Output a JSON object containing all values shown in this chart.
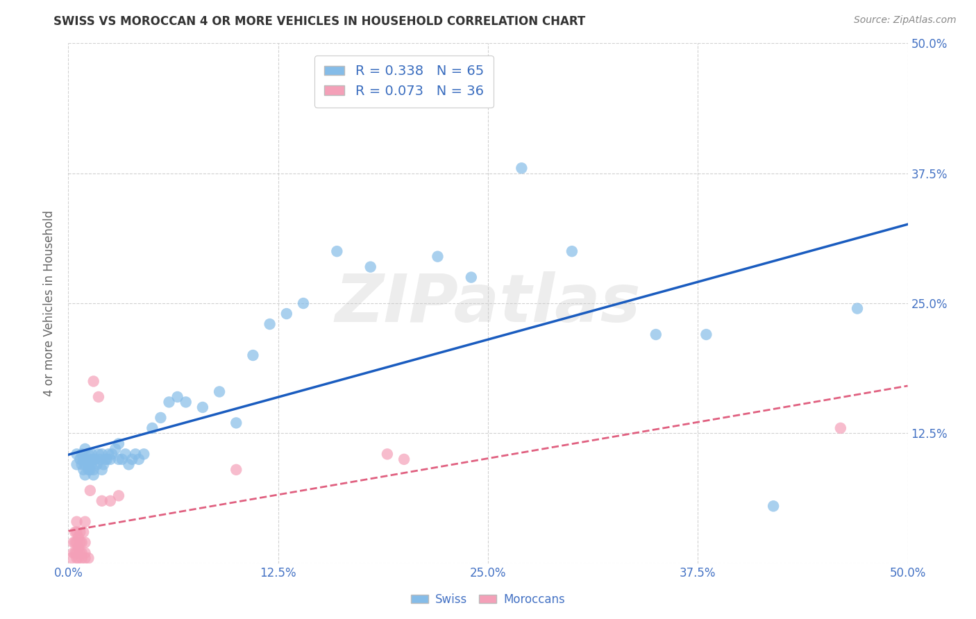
{
  "title": "SWISS VS MOROCCAN 4 OR MORE VEHICLES IN HOUSEHOLD CORRELATION CHART",
  "source": "Source: ZipAtlas.com",
  "ylabel": "4 or more Vehicles in Household",
  "xlim": [
    0.0,
    0.5
  ],
  "ylim": [
    0.0,
    0.5
  ],
  "xtick_vals": [
    0.0,
    0.125,
    0.25,
    0.375,
    0.5
  ],
  "xtick_labels": [
    "0.0%",
    "12.5%",
    "25.0%",
    "37.5%",
    "50.0%"
  ],
  "right_ytick_vals": [
    0.5,
    0.375,
    0.25,
    0.125
  ],
  "right_ytick_labels": [
    "50.0%",
    "37.5%",
    "25.0%",
    "12.5%"
  ],
  "swiss_R": 0.338,
  "swiss_N": 65,
  "moroccan_R": 0.073,
  "moroccan_N": 36,
  "swiss_color": "#85bce8",
  "moroccan_color": "#f4a0b8",
  "swiss_line_color": "#1a5cbf",
  "moroccan_line_color": "#e06080",
  "background_color": "#ffffff",
  "grid_color": "#cccccc",
  "legend_text_color": "#3a6dbf",
  "watermark": "ZIPatlas",
  "swiss_x": [
    0.005,
    0.005,
    0.007,
    0.008,
    0.008,
    0.009,
    0.009,
    0.01,
    0.01,
    0.01,
    0.01,
    0.012,
    0.012,
    0.012,
    0.013,
    0.013,
    0.014,
    0.014,
    0.015,
    0.015,
    0.015,
    0.016,
    0.017,
    0.018,
    0.019,
    0.02,
    0.02,
    0.021,
    0.022,
    0.023,
    0.024,
    0.025,
    0.026,
    0.028,
    0.03,
    0.03,
    0.032,
    0.034,
    0.036,
    0.038,
    0.04,
    0.042,
    0.045,
    0.05,
    0.055,
    0.06,
    0.065,
    0.07,
    0.08,
    0.09,
    0.1,
    0.11,
    0.12,
    0.13,
    0.14,
    0.16,
    0.18,
    0.22,
    0.24,
    0.27,
    0.3,
    0.35,
    0.38,
    0.42,
    0.47
  ],
  "swiss_y": [
    0.095,
    0.105,
    0.1,
    0.095,
    0.105,
    0.09,
    0.1,
    0.085,
    0.095,
    0.1,
    0.11,
    0.09,
    0.095,
    0.105,
    0.09,
    0.1,
    0.095,
    0.105,
    0.085,
    0.09,
    0.1,
    0.1,
    0.095,
    0.105,
    0.1,
    0.09,
    0.105,
    0.095,
    0.1,
    0.1,
    0.105,
    0.1,
    0.105,
    0.11,
    0.1,
    0.115,
    0.1,
    0.105,
    0.095,
    0.1,
    0.105,
    0.1,
    0.105,
    0.13,
    0.14,
    0.155,
    0.16,
    0.155,
    0.15,
    0.165,
    0.135,
    0.2,
    0.23,
    0.24,
    0.25,
    0.3,
    0.285,
    0.295,
    0.275,
    0.38,
    0.3,
    0.22,
    0.22,
    0.055,
    0.245
  ],
  "moroccan_x": [
    0.002,
    0.003,
    0.003,
    0.004,
    0.004,
    0.004,
    0.005,
    0.005,
    0.005,
    0.005,
    0.005,
    0.006,
    0.006,
    0.006,
    0.007,
    0.007,
    0.007,
    0.008,
    0.008,
    0.008,
    0.009,
    0.01,
    0.01,
    0.01,
    0.01,
    0.012,
    0.013,
    0.015,
    0.018,
    0.02,
    0.025,
    0.03,
    0.1,
    0.19,
    0.2,
    0.46
  ],
  "moroccan_y": [
    0.005,
    0.01,
    0.02,
    0.01,
    0.02,
    0.03,
    0.005,
    0.01,
    0.02,
    0.03,
    0.04,
    0.005,
    0.015,
    0.025,
    0.01,
    0.02,
    0.03,
    0.005,
    0.01,
    0.02,
    0.03,
    0.005,
    0.01,
    0.02,
    0.04,
    0.005,
    0.07,
    0.175,
    0.16,
    0.06,
    0.06,
    0.065,
    0.09,
    0.105,
    0.1,
    0.13
  ]
}
